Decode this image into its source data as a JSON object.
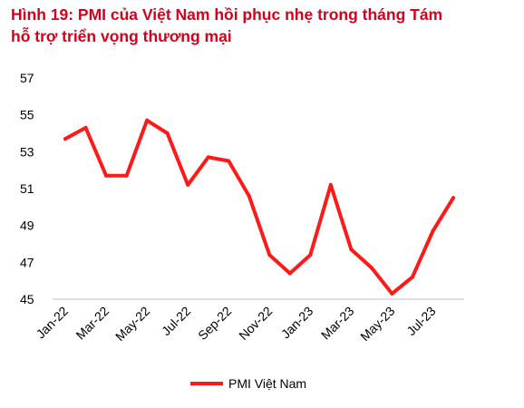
{
  "chart_data": {
    "type": "line",
    "title": "Hình 19: PMI của Việt Nam hồi phục nhẹ trong tháng Tám",
    "subtitle": "hỗ trợ triển vọng thương mại",
    "x": [
      "Jan-22",
      "Feb-22",
      "Mar-22",
      "Apr-22",
      "May-22",
      "Jun-22",
      "Jul-22",
      "Aug-22",
      "Sep-22",
      "Oct-22",
      "Nov-22",
      "Dec-22",
      "Jan-23",
      "Feb-23",
      "Mar-23",
      "Apr-23",
      "May-23",
      "Jun-23",
      "Jul-23",
      "Aug-23"
    ],
    "x_tick_labels": [
      "Jan-22",
      "Mar-22",
      "May-22",
      "Jul-22",
      "Sep-22",
      "Nov-22",
      "Jan-23",
      "Mar-23",
      "May-23",
      "Jul-23"
    ],
    "series": [
      {
        "name": "PMI Việt Nam",
        "color": "#ff1a1a",
        "values": [
          53.7,
          54.3,
          51.7,
          51.7,
          54.7,
          54.0,
          51.2,
          52.7,
          52.5,
          50.6,
          47.4,
          46.4,
          47.4,
          51.2,
          47.7,
          46.7,
          45.3,
          46.2,
          48.7,
          50.5
        ]
      }
    ],
    "yticks": [
      45,
      47,
      49,
      51,
      53,
      55,
      57
    ],
    "ylim": [
      45,
      57
    ],
    "grid": false,
    "legend_position": "bottom-center"
  }
}
